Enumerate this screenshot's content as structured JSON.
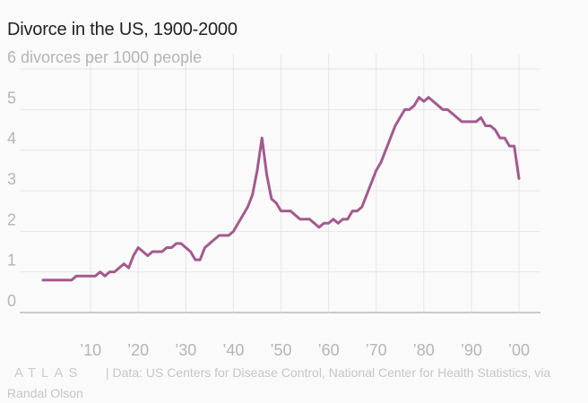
{
  "page": {
    "title": "Divorce in the US, 1900-2000",
    "brand": "ATLAS",
    "source": "| Data: US Centers for Disease Control, National Center for Health Statistics, via Randal Olson"
  },
  "colors": {
    "line": "#a35a8f",
    "grid": "#e6e6e6",
    "baseline": "#999999",
    "tick_text": "#b5b5b5",
    "background": "#fafafa"
  },
  "chart_data": {
    "type": "line",
    "title": "Divorce in the US, 1900-2000",
    "ylabel": "divorces per 1000 people",
    "y_top_label": "6 divorces per 1000 people",
    "ylim": [
      0,
      6
    ],
    "xlim": [
      1900,
      2001
    ],
    "y_ticks": [
      {
        "value": 0,
        "label": "0"
      },
      {
        "value": 1,
        "label": "1"
      },
      {
        "value": 2,
        "label": "2"
      },
      {
        "value": 3,
        "label": "3"
      },
      {
        "value": 4,
        "label": "4"
      },
      {
        "value": 5,
        "label": "5"
      },
      {
        "value": 6,
        "label": "6 divorces per 1000 people"
      }
    ],
    "x_ticks": [
      {
        "value": 1910,
        "label": "’10"
      },
      {
        "value": 1920,
        "label": "’20"
      },
      {
        "value": 1930,
        "label": "’30"
      },
      {
        "value": 1940,
        "label": "’40"
      },
      {
        "value": 1950,
        "label": "’50"
      },
      {
        "value": 1960,
        "label": "’60"
      },
      {
        "value": 1970,
        "label": "’70"
      },
      {
        "value": 1980,
        "label": "’80"
      },
      {
        "value": 1990,
        "label": "’90"
      },
      {
        "value": 2000,
        "label": "’00"
      }
    ],
    "series": [
      {
        "name": "Divorces per 1000 people",
        "x": [
          1900,
          1901,
          1902,
          1903,
          1904,
          1905,
          1906,
          1907,
          1908,
          1909,
          1910,
          1911,
          1912,
          1913,
          1914,
          1915,
          1916,
          1917,
          1918,
          1919,
          1920,
          1921,
          1922,
          1923,
          1924,
          1925,
          1926,
          1927,
          1928,
          1929,
          1930,
          1931,
          1932,
          1933,
          1934,
          1935,
          1936,
          1937,
          1938,
          1939,
          1940,
          1941,
          1942,
          1943,
          1944,
          1945,
          1946,
          1947,
          1948,
          1949,
          1950,
          1951,
          1952,
          1953,
          1954,
          1955,
          1956,
          1957,
          1958,
          1959,
          1960,
          1961,
          1962,
          1963,
          1964,
          1965,
          1966,
          1967,
          1968,
          1969,
          1970,
          1971,
          1972,
          1973,
          1974,
          1975,
          1976,
          1977,
          1978,
          1979,
          1980,
          1981,
          1982,
          1983,
          1984,
          1985,
          1986,
          1987,
          1988,
          1989,
          1990,
          1991,
          1992,
          1993,
          1994,
          1995,
          1996,
          1997,
          1998,
          1999,
          2000
        ],
        "values": [
          0.8,
          0.8,
          0.8,
          0.8,
          0.8,
          0.8,
          0.8,
          0.9,
          0.9,
          0.9,
          0.9,
          0.9,
          1.0,
          0.9,
          1.0,
          1.0,
          1.1,
          1.2,
          1.1,
          1.4,
          1.6,
          1.5,
          1.4,
          1.5,
          1.5,
          1.5,
          1.6,
          1.6,
          1.7,
          1.7,
          1.6,
          1.5,
          1.3,
          1.3,
          1.6,
          1.7,
          1.8,
          1.9,
          1.9,
          1.9,
          2.0,
          2.2,
          2.4,
          2.6,
          2.9,
          3.5,
          4.3,
          3.4,
          2.8,
          2.7,
          2.5,
          2.5,
          2.5,
          2.4,
          2.3,
          2.3,
          2.3,
          2.2,
          2.1,
          2.2,
          2.2,
          2.3,
          2.2,
          2.3,
          2.3,
          2.5,
          2.5,
          2.6,
          2.9,
          3.2,
          3.5,
          3.7,
          4.0,
          4.3,
          4.6,
          4.8,
          5.0,
          5.0,
          5.1,
          5.3,
          5.2,
          5.3,
          5.2,
          5.1,
          5.0,
          5.0,
          4.9,
          4.8,
          4.7,
          4.7,
          4.7,
          4.7,
          4.8,
          4.6,
          4.6,
          4.5,
          4.3,
          4.3,
          4.1,
          4.1,
          3.3
        ]
      }
    ]
  }
}
